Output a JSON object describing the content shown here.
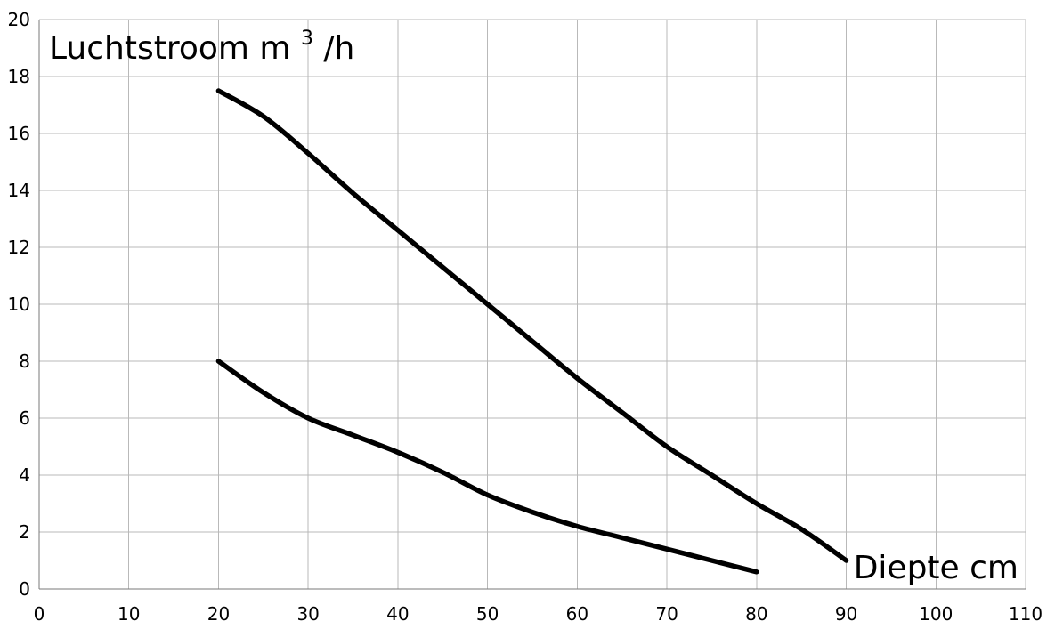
{
  "chart_data": {
    "type": "line",
    "title": "",
    "ylabel_main": "Luchtstroom  m",
    "ylabel_sup": "3",
    "ylabel_tail": "/h",
    "xlabel": "Diepte cm",
    "xlim": [
      0,
      110
    ],
    "ylim": [
      0,
      20
    ],
    "x_ticks": [
      0,
      10,
      20,
      30,
      40,
      50,
      60,
      70,
      80,
      90,
      100,
      110
    ],
    "y_ticks": [
      0,
      2,
      4,
      6,
      8,
      10,
      12,
      14,
      16,
      18,
      20
    ],
    "grid": true,
    "series": [
      {
        "color": "#000000",
        "x": [
          20,
          25,
          30,
          35,
          40,
          45,
          50,
          55,
          60,
          65,
          70,
          75,
          80,
          85,
          90
        ],
        "y": [
          17.5,
          16.6,
          15.3,
          13.9,
          12.6,
          11.3,
          10.0,
          8.7,
          7.4,
          6.2,
          5.0,
          4.0,
          3.0,
          2.1,
          1.0
        ]
      },
      {
        "color": "#000000",
        "x": [
          20,
          25,
          30,
          35,
          40,
          45,
          50,
          55,
          60,
          65,
          70,
          75,
          80
        ],
        "y": [
          8.0,
          6.9,
          6.0,
          5.4,
          4.8,
          4.1,
          3.3,
          2.7,
          2.2,
          1.8,
          1.4,
          1.0,
          0.6
        ]
      }
    ]
  }
}
